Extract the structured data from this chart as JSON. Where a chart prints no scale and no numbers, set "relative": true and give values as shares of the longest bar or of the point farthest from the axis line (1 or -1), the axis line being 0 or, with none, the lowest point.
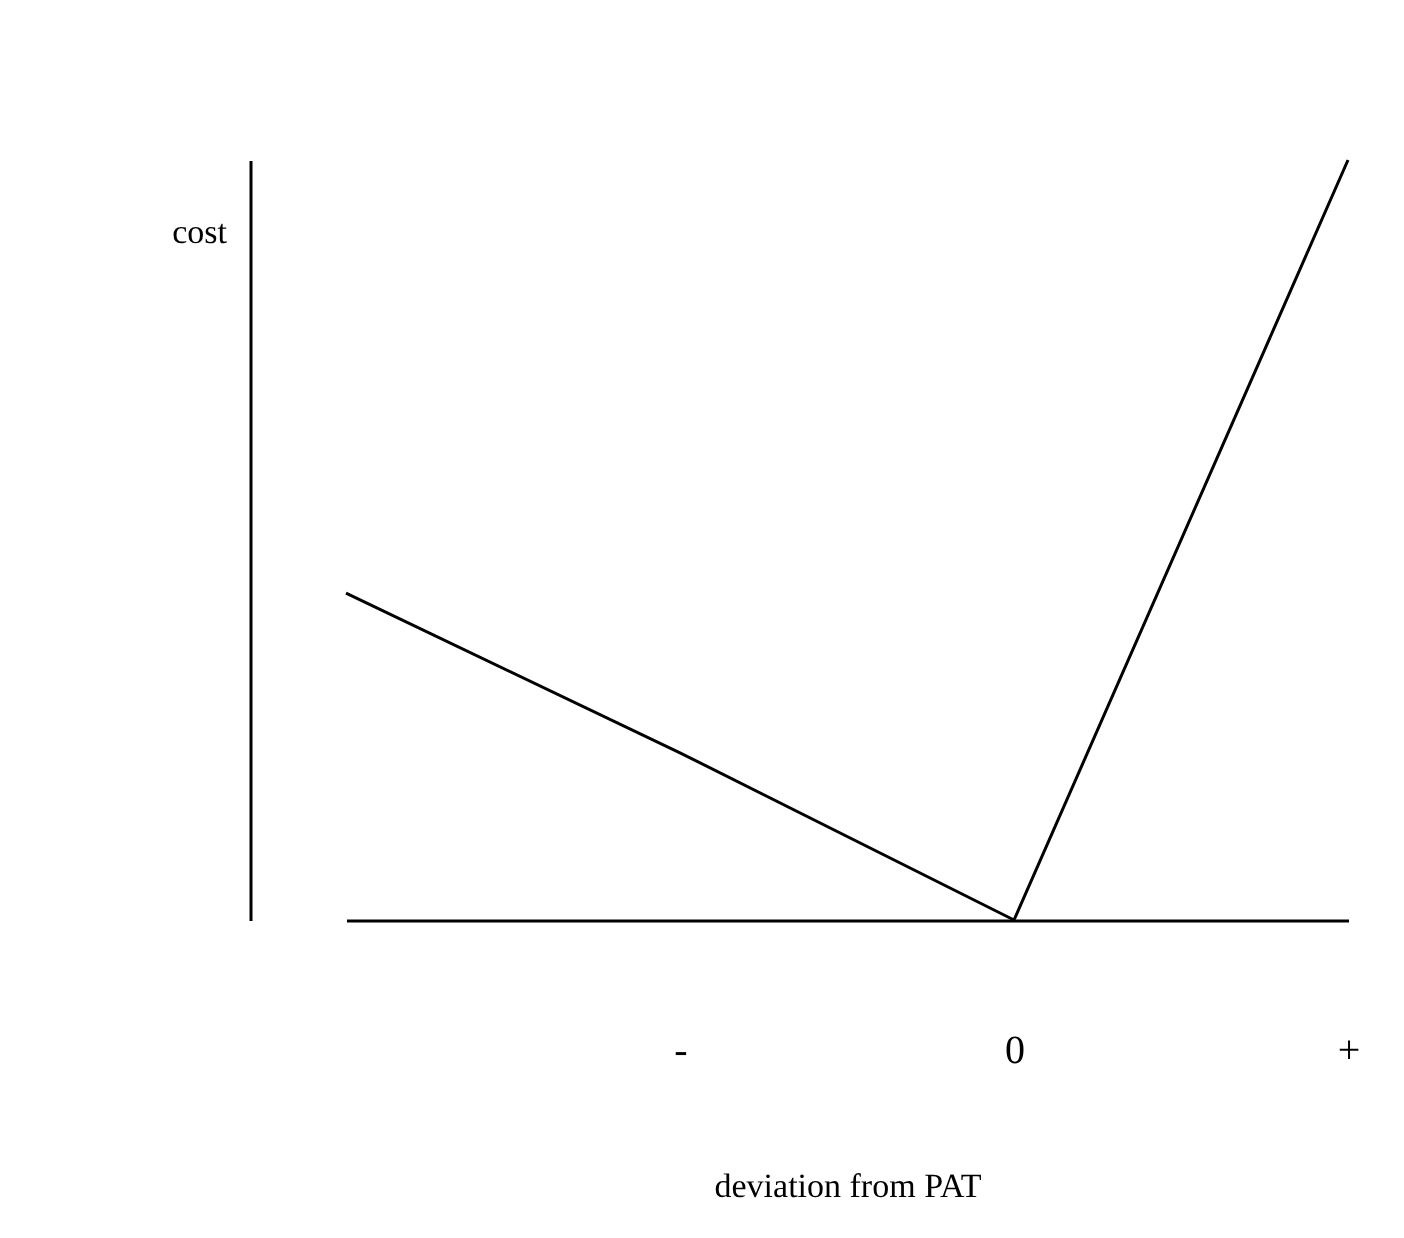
{
  "chart_data": {
    "type": "line",
    "relative": true,
    "xlabel": "deviation from PAT",
    "ylabel": "cost",
    "categories": [
      null,
      "-",
      "0",
      "+"
    ],
    "values": [
      0.43,
      0.22,
      0,
      1
    ],
    "color": "#000000",
    "tick_labels": "x",
    "grid": false,
    "marker": "none",
    "line_style": "solid"
  }
}
